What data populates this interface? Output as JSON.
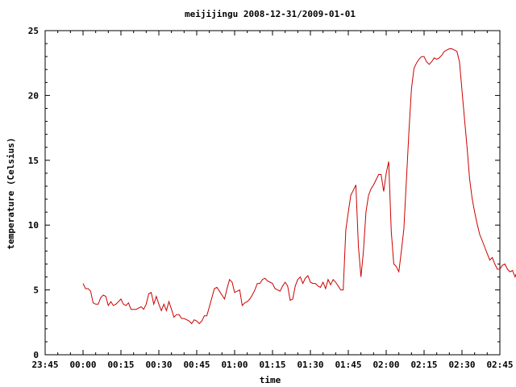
{
  "chart_data": {
    "type": "line",
    "title": "meijijingu 2008-12-31/2009-01-01",
    "xlabel": "time",
    "ylabel": "temperature (Celsius)",
    "x_ticks": [
      "23:45",
      "00:00",
      "00:15",
      "00:30",
      "00:45",
      "01:00",
      "01:15",
      "01:30",
      "01:45",
      "02:00",
      "02:15",
      "02:30",
      "02:45"
    ],
    "y_ticks": [
      "0",
      "5",
      "10",
      "15",
      "20",
      "25"
    ],
    "xlim": [
      "23:45",
      "02:45"
    ],
    "ylim": [
      0,
      25
    ],
    "grid": false,
    "legend": "none",
    "series": [
      {
        "color": "#cc0000",
        "points": [
          [
            "00:00",
            5.5
          ],
          [
            "00:01",
            5.1
          ],
          [
            "00:02",
            5.1
          ],
          [
            "00:03",
            4.9
          ],
          [
            "00:04",
            4.0
          ],
          [
            "00:05",
            3.9
          ],
          [
            "00:06",
            3.9
          ],
          [
            "00:07",
            4.4
          ],
          [
            "00:08",
            4.6
          ],
          [
            "00:09",
            4.5
          ],
          [
            "00:10",
            3.8
          ],
          [
            "00:11",
            4.1
          ],
          [
            "00:12",
            3.8
          ],
          [
            "00:13",
            3.9
          ],
          [
            "00:14",
            4.1
          ],
          [
            "00:15",
            4.3
          ],
          [
            "00:16",
            3.9
          ],
          [
            "00:17",
            3.8
          ],
          [
            "00:18",
            4.0
          ],
          [
            "00:19",
            3.5
          ],
          [
            "00:20",
            3.5
          ],
          [
            "00:21",
            3.5
          ],
          [
            "00:22",
            3.6
          ],
          [
            "00:23",
            3.7
          ],
          [
            "00:24",
            3.5
          ],
          [
            "00:25",
            3.9
          ],
          [
            "00:26",
            4.7
          ],
          [
            "00:27",
            4.8
          ],
          [
            "00:28",
            3.9
          ],
          [
            "00:29",
            4.5
          ],
          [
            "00:30",
            3.9
          ],
          [
            "00:31",
            3.4
          ],
          [
            "00:32",
            3.9
          ],
          [
            "00:33",
            3.4
          ],
          [
            "00:34",
            4.1
          ],
          [
            "00:35",
            3.5
          ],
          [
            "00:36",
            2.9
          ],
          [
            "00:37",
            3.1
          ],
          [
            "00:38",
            3.1
          ],
          [
            "00:39",
            2.8
          ],
          [
            "00:40",
            2.8
          ],
          [
            "00:41",
            2.7
          ],
          [
            "00:42",
            2.6
          ],
          [
            "00:43",
            2.4
          ],
          [
            "00:44",
            2.7
          ],
          [
            "00:45",
            2.6
          ],
          [
            "00:46",
            2.4
          ],
          [
            "00:47",
            2.6
          ],
          [
            "00:48",
            3.0
          ],
          [
            "00:49",
            3.0
          ],
          [
            "00:50",
            3.7
          ],
          [
            "00:51",
            4.4
          ],
          [
            "00:52",
            5.1
          ],
          [
            "00:53",
            5.2
          ],
          [
            "00:54",
            4.9
          ],
          [
            "00:55",
            4.6
          ],
          [
            "00:56",
            4.3
          ],
          [
            "00:57",
            5.1
          ],
          [
            "00:58",
            5.8
          ],
          [
            "00:59",
            5.6
          ],
          [
            "01:00",
            4.8
          ],
          [
            "01:01",
            4.9
          ],
          [
            "01:02",
            5.0
          ],
          [
            "01:03",
            3.8
          ],
          [
            "01:04",
            4.0
          ],
          [
            "01:05",
            4.1
          ],
          [
            "01:06",
            4.3
          ],
          [
            "01:07",
            4.6
          ],
          [
            "01:08",
            5.0
          ],
          [
            "01:09",
            5.5
          ],
          [
            "01:10",
            5.5
          ],
          [
            "01:11",
            5.8
          ],
          [
            "01:12",
            5.9
          ],
          [
            "01:13",
            5.7
          ],
          [
            "01:14",
            5.6
          ],
          [
            "01:15",
            5.5
          ],
          [
            "01:16",
            5.1
          ],
          [
            "01:17",
            5.0
          ],
          [
            "01:18",
            4.9
          ],
          [
            "01:19",
            5.3
          ],
          [
            "01:20",
            5.6
          ],
          [
            "01:21",
            5.3
          ],
          [
            "01:22",
            4.2
          ],
          [
            "01:23",
            4.3
          ],
          [
            "01:24",
            5.3
          ],
          [
            "01:25",
            5.8
          ],
          [
            "01:26",
            6.0
          ],
          [
            "01:27",
            5.5
          ],
          [
            "01:28",
            5.9
          ],
          [
            "01:29",
            6.1
          ],
          [
            "01:30",
            5.6
          ],
          [
            "01:31",
            5.5
          ],
          [
            "01:32",
            5.5
          ],
          [
            "01:33",
            5.3
          ],
          [
            "01:34",
            5.2
          ],
          [
            "01:35",
            5.6
          ],
          [
            "01:36",
            5.1
          ],
          [
            "01:37",
            5.8
          ],
          [
            "01:38",
            5.4
          ],
          [
            "01:39",
            5.8
          ],
          [
            "01:40",
            5.6
          ],
          [
            "01:41",
            5.3
          ],
          [
            "01:42",
            5.0
          ],
          [
            "01:43",
            5.0
          ],
          [
            "01:44",
            9.6
          ],
          [
            "01:45",
            11.0
          ],
          [
            "01:46",
            12.3
          ],
          [
            "01:47",
            12.7
          ],
          [
            "01:48",
            13.1
          ],
          [
            "01:49",
            8.4
          ],
          [
            "01:50",
            6.0
          ],
          [
            "01:51",
            8.0
          ],
          [
            "01:52",
            11.0
          ],
          [
            "01:53",
            12.3
          ],
          [
            "01:54",
            12.8
          ],
          [
            "01:55",
            13.1
          ],
          [
            "01:56",
            13.5
          ],
          [
            "01:57",
            13.9
          ],
          [
            "01:58",
            13.9
          ],
          [
            "01:59",
            12.6
          ],
          [
            "02:00",
            14.0
          ],
          [
            "02:01",
            14.9
          ],
          [
            "02:02",
            9.5
          ],
          [
            "02:03",
            7.0
          ],
          [
            "02:04",
            6.8
          ],
          [
            "02:05",
            6.4
          ],
          [
            "02:06",
            8.0
          ],
          [
            "02:07",
            9.7
          ],
          [
            "02:08",
            13.5
          ],
          [
            "02:09",
            17.2
          ],
          [
            "02:10",
            20.5
          ],
          [
            "02:11",
            22.1
          ],
          [
            "02:12",
            22.5
          ],
          [
            "02:13",
            22.8
          ],
          [
            "02:14",
            23.0
          ],
          [
            "02:15",
            23.0
          ],
          [
            "02:16",
            22.6
          ],
          [
            "02:17",
            22.4
          ],
          [
            "02:18",
            22.6
          ],
          [
            "02:19",
            22.9
          ],
          [
            "02:20",
            22.8
          ],
          [
            "02:21",
            22.9
          ],
          [
            "02:22",
            23.1
          ],
          [
            "02:23",
            23.4
          ],
          [
            "02:24",
            23.5
          ],
          [
            "02:25",
            23.6
          ],
          [
            "02:26",
            23.6
          ],
          [
            "02:27",
            23.5
          ],
          [
            "02:28",
            23.4
          ],
          [
            "02:29",
            22.6
          ],
          [
            "02:30",
            20.4
          ],
          [
            "02:31",
            18.2
          ],
          [
            "02:32",
            16.0
          ],
          [
            "02:33",
            13.6
          ],
          [
            "02:34",
            12.1
          ],
          [
            "02:35",
            11.0
          ],
          [
            "02:36",
            10.1
          ],
          [
            "02:37",
            9.3
          ],
          [
            "02:38",
            8.8
          ],
          [
            "02:39",
            8.3
          ],
          [
            "02:40",
            7.8
          ],
          [
            "02:41",
            7.3
          ],
          [
            "02:42",
            7.5
          ],
          [
            "02:43",
            7.0
          ],
          [
            "02:44",
            6.6
          ],
          [
            "02:45",
            6.6
          ],
          [
            "02:46",
            6.9
          ],
          [
            "02:47",
            7.0
          ],
          [
            "02:48",
            6.6
          ],
          [
            "02:49",
            6.4
          ],
          [
            "02:50",
            6.5
          ],
          [
            "02:51",
            6.0
          ],
          [
            "02:52",
            6.5
          ]
        ]
      }
    ]
  }
}
